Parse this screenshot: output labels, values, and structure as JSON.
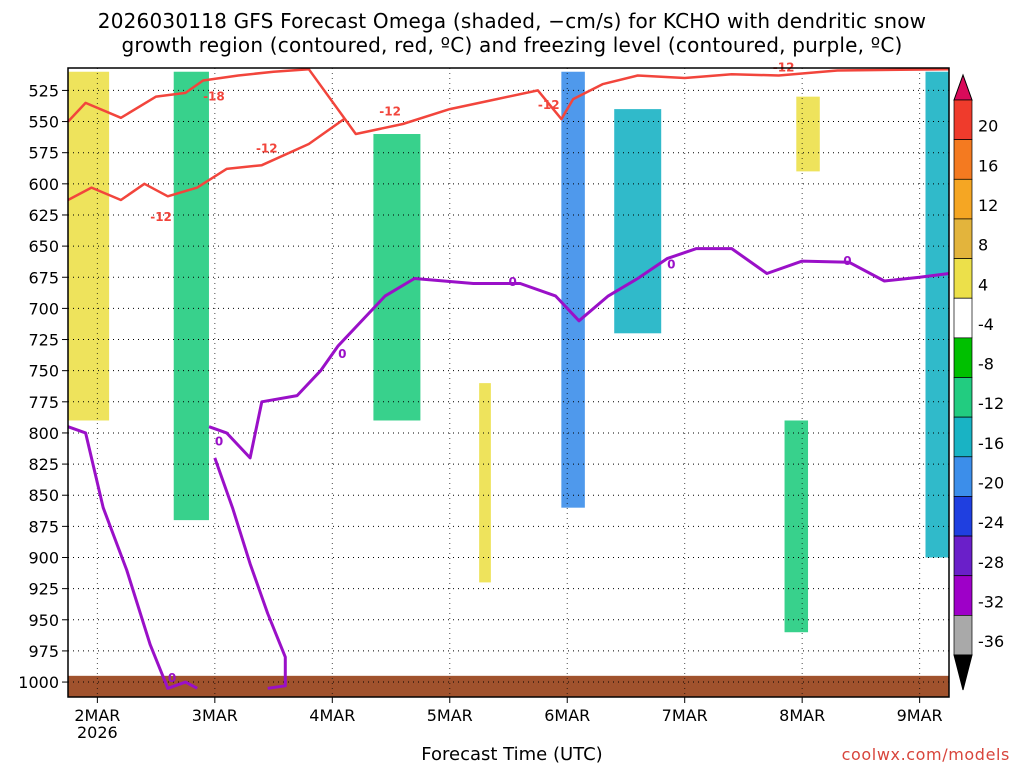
{
  "title_line1": "2026030118 GFS Forecast Omega (shaded, −cm/s) for KCHO with dendritic snow",
  "title_line2": "growth region (contoured, red, ºC) and freezing level (contoured, purple, ºC)",
  "xaxis_title": "Forecast Time (UTC)",
  "credit": "coolwx.com/models",
  "chart_data": {
    "type": "heatmap",
    "title": "2026030118 GFS Forecast Omega (shaded, −cm/s) for KCHO with dendritic snow growth region (contoured, red, ºC) and freezing level (contoured, purple, ºC)",
    "xlabel": "Forecast Time (UTC)",
    "ylabel": "",
    "x_ticks": [
      "2MAR",
      "3MAR",
      "4MAR",
      "5MAR",
      "6MAR",
      "7MAR",
      "8MAR",
      "9MAR"
    ],
    "x_tick_sublabel": "2026",
    "y_ticks": [
      525,
      550,
      575,
      600,
      625,
      650,
      675,
      700,
      725,
      750,
      775,
      800,
      825,
      850,
      875,
      900,
      925,
      950,
      975,
      1000
    ],
    "ylim": [
      507,
      1012
    ],
    "xlim_days": [
      1.75,
      9.25
    ],
    "y_inverted": true,
    "grid": true,
    "colorbar": {
      "labels": [
        "20",
        "16",
        "12",
        "8",
        "4",
        "-4",
        "-8",
        "-12",
        "-16",
        "-20",
        "-24",
        "-28",
        "-32",
        "-36"
      ],
      "colors": [
        "#d90a5a",
        "#ef3b2c",
        "#f47a20",
        "#f5a623",
        "#e3b43c",
        "#ece04a",
        "#ffffff",
        "#00c000",
        "#22cc80",
        "#19b3c4",
        "#3c8eea",
        "#1f3fe0",
        "#6a1fc9",
        "#9e00c8",
        "#a9a9a9",
        "#000000"
      ]
    },
    "red_contour_labels": [
      "-18",
      "-12",
      "-12",
      "-12",
      "-12",
      "-12"
    ],
    "purple_contour_labels": [
      "0",
      "0",
      "0",
      "0",
      "0",
      "0"
    ],
    "red_contour": [
      [
        1.75,
        550
      ],
      [
        1.9,
        535
      ],
      [
        2.2,
        547
      ],
      [
        2.5,
        530
      ],
      [
        2.75,
        527
      ],
      [
        2.9,
        517
      ],
      [
        3.2,
        513
      ],
      [
        3.5,
        510
      ],
      [
        3.8,
        508
      ],
      [
        4.2,
        560
      ],
      [
        4.6,
        552
      ],
      [
        5.0,
        540
      ],
      [
        5.4,
        532
      ],
      [
        5.75,
        525
      ],
      [
        5.95,
        548
      ],
      [
        6.05,
        532
      ],
      [
        6.3,
        520
      ],
      [
        6.6,
        513
      ],
      [
        7.0,
        515
      ],
      [
        7.4,
        512
      ],
      [
        7.8,
        513
      ],
      [
        8.3,
        509
      ],
      [
        9.25,
        508
      ]
    ],
    "red_contour_lower": [
      [
        1.75,
        613
      ],
      [
        1.95,
        603
      ],
      [
        2.2,
        613
      ],
      [
        2.4,
        600
      ],
      [
        2.6,
        610
      ],
      [
        2.85,
        603
      ],
      [
        3.1,
        588
      ],
      [
        3.4,
        585
      ],
      [
        3.8,
        568
      ],
      [
        4.1,
        548
      ]
    ],
    "purple_contour": [
      [
        1.75,
        795
      ],
      [
        1.9,
        800
      ],
      [
        2.05,
        860
      ],
      [
        2.25,
        910
      ],
      [
        2.45,
        970
      ],
      [
        2.6,
        1005
      ],
      [
        2.75,
        1000
      ],
      [
        2.85,
        1005
      ]
    ],
    "purple_contour_main": [
      [
        2.95,
        795
      ],
      [
        3.1,
        800
      ],
      [
        3.3,
        820
      ],
      [
        3.4,
        775
      ],
      [
        3.7,
        770
      ],
      [
        3.9,
        750
      ],
      [
        4.05,
        730
      ],
      [
        4.2,
        715
      ],
      [
        4.45,
        690
      ],
      [
        4.7,
        676
      ],
      [
        5.2,
        680
      ],
      [
        5.6,
        680
      ],
      [
        5.9,
        690
      ],
      [
        6.1,
        710
      ],
      [
        6.35,
        690
      ],
      [
        6.6,
        676
      ],
      [
        6.85,
        660
      ],
      [
        7.1,
        652
      ],
      [
        7.4,
        652
      ],
      [
        7.7,
        672
      ],
      [
        8.0,
        662
      ],
      [
        8.4,
        663
      ],
      [
        8.7,
        678
      ],
      [
        9.0,
        675
      ],
      [
        9.25,
        672
      ]
    ],
    "purple_contour_lower": [
      [
        3.0,
        820
      ],
      [
        3.15,
        860
      ],
      [
        3.3,
        905
      ],
      [
        3.45,
        945
      ],
      [
        3.6,
        980
      ],
      [
        3.6,
        1003
      ],
      [
        3.45,
        1005
      ]
    ],
    "shaded_regions": [
      {
        "x": [
          2.65,
          2.95
        ],
        "p": [
          510,
          870
        ],
        "value": -10
      },
      {
        "x": [
          4.35,
          4.75
        ],
        "p": [
          560,
          790
        ],
        "value": -8
      },
      {
        "x": [
          5.95,
          6.15
        ],
        "p": [
          510,
          860
        ],
        "value": -16
      },
      {
        "x": [
          6.4,
          6.8
        ],
        "p": [
          540,
          720
        ],
        "value": -12
      },
      {
        "x": [
          7.85,
          8.05
        ],
        "p": [
          790,
          960
        ],
        "value": -8
      },
      {
        "x": [
          9.05,
          9.25
        ],
        "p": [
          510,
          900
        ],
        "value": -12
      },
      {
        "x": [
          1.75,
          2.1
        ],
        "p": [
          510,
          790
        ],
        "value": 6
      },
      {
        "x": [
          5.25,
          5.35
        ],
        "p": [
          760,
          920
        ],
        "value": 5
      },
      {
        "x": [
          7.95,
          8.15
        ],
        "p": [
          530,
          590
        ],
        "value": 5
      }
    ]
  }
}
